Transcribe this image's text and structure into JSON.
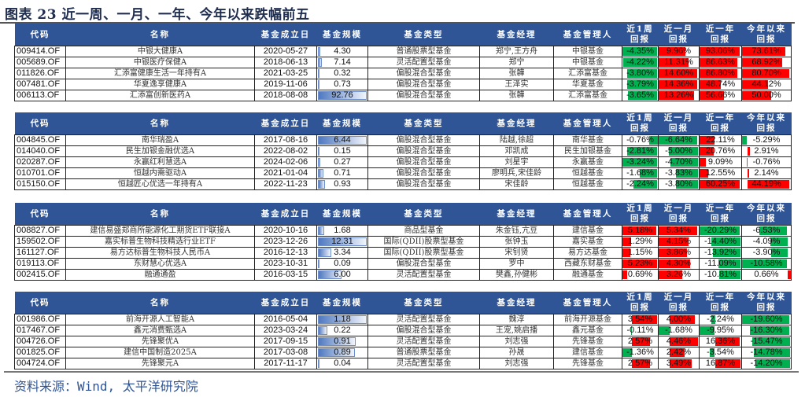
{
  "title": "图表 23 近一周、一月、一年、今年以来跌幅前五",
  "source": "资料来源：Wind, 太平洋研究院",
  "colors": {
    "header_bg": "#2f5597",
    "positive_bar": "#ff0000",
    "negative_bar": "#00b050",
    "scale_bar": "#4f79c0"
  },
  "headers": [
    "代码",
    "名称",
    "基金成立日",
    "基金规模",
    "基金类型",
    "基金经理",
    "基金管理人",
    "近1周\n回报",
    "近一月\n回报",
    "近一年\n回报",
    "今年以来\n回报"
  ],
  "sections": [
    {
      "rows": [
        [
          "009414.OF",
          "中银大健康A",
          "2020-05-27",
          "4.30",
          "普通股票型基金",
          "郑宁,王方舟",
          "中银基金",
          "-4.35%",
          "9.96%",
          "93.06%",
          "73.61%"
        ],
        [
          "005689.OF",
          "中银医疗保健A",
          "2018-06-13",
          "7.14",
          "灵活配置型基金",
          "郑宁",
          "中银基金",
          "-4.22%",
          "11.31%",
          "86.63%",
          "68.92%"
        ],
        [
          "011826.OF",
          "汇添富健康生活一年持有A",
          "2021-03-25",
          "0.32",
          "偏股混合型基金",
          "张韡",
          "汇添富基金",
          "-3.80%",
          "14.60%",
          "86.80%",
          "80.70%"
        ],
        [
          "007481.OF",
          "华夏逸享健康A",
          "2019-11-06",
          "0.73",
          "偏股混合型基金",
          "王泽实",
          "华夏基金",
          "-3.79%",
          "14.36%",
          "48.74%",
          "44.12%"
        ],
        [
          "006113.OF",
          "汇添富创新医药A",
          "2018-08-08",
          "92.76",
          "偏股混合型基金",
          "张韡",
          "汇添富基金",
          "-3.65%",
          "13.26%",
          "56.66%",
          "50.00%"
        ]
      ]
    },
    {
      "rows": [
        [
          "004845.OF",
          "南华瑞盈A",
          "2017-08-16",
          "6.44",
          "偏股混合型基金",
          "陆越,徐超",
          "南华基金",
          "-0.76%",
          "-6.64%",
          "22.11%",
          "-5.29%"
        ],
        [
          "014040.OF",
          "民生加银金融优选A",
          "2022-08-02",
          "0.15",
          "偏股混合型基金",
          "邓凯成",
          "民生加银基金",
          "-2.81%",
          "-5.00%",
          "20.76%",
          "2.91%"
        ],
        [
          "020287.OF",
          "永赢红利慧选A",
          "2024-02-06",
          "0.27",
          "偏股混合型基金",
          "刘星宇",
          "永赢基金",
          "-3.24%",
          "-4.70%",
          "9.09%",
          "-0.76%"
        ],
        [
          "010701.OF",
          "恒越内需驱动A",
          "2021-01-04",
          "0.71",
          "偏股混合型基金",
          "廖明兵,宋佳龄",
          "恒越基金",
          "-1.68%",
          "-3.83%",
          "12.55%",
          "2.14%"
        ],
        [
          "015150.OF",
          "恒越匠心优选一年持有A",
          "2022-11-23",
          "0.93",
          "偏股混合型基金",
          "宋佳龄",
          "恒越基金",
          "-2.24%",
          "-3.80%",
          "60.25%",
          "44.19%"
        ]
      ]
    },
    {
      "rows": [
        [
          "008827.OF",
          "建信易盛郑商所能源化工期货ETF联接A",
          "2020-10-16",
          "1.68",
          "商品型基金",
          "朱金钰,亢豆",
          "建信基金",
          "5.18%",
          "5.34%",
          "-20.29%",
          "-6.53%"
        ],
        [
          "159502.OF",
          "嘉实标普生物科技精选行业ETF",
          "2023-12-26",
          "12.31",
          "国际(QDII)股票型基金",
          "张钟玉",
          "嘉实基金",
          "1.29%",
          "4.15%",
          "-14.40%",
          "-4.09%"
        ],
        [
          "161127.OF",
          "易方达标普生物科技人民币A",
          "2016-12-13",
          "3.34",
          "国际(QDII)股票型基金",
          "宋钊贤",
          "易方达基金",
          "1.15%",
          "3.86%",
          "-13.92%",
          "-3.90%"
        ],
        [
          "019113.OF",
          "东财慧心优选A",
          "2023-10-31",
          "0.09",
          "偏股混合型基金",
          "罗中",
          "西藏东财基金",
          "5.23%",
          "4.30%",
          "-11.09%",
          "-10.58%"
        ],
        [
          "002415.OF",
          "融通通盈",
          "2016-03-15",
          "6.00",
          "灵活配置型基金",
          "樊鑫,孙健彬",
          "融通基金",
          "0.69%",
          "3.26%",
          "-10.81%",
          "0.66%"
        ]
      ]
    },
    {
      "rows": [
        [
          "001986.OF",
          "前海开源人工智能A",
          "2016-05-04",
          "1.18",
          "灵活配置型基金",
          "魏淳",
          "前海开源基金",
          "3.54%",
          "4.00%",
          "-2.24%",
          "-19.60%"
        ],
        [
          "017467.OF",
          "鑫元消费甄选A",
          "2023-03-24",
          "0.22",
          "偏股混合型基金",
          "王宠,姚启播",
          "鑫元基金",
          "-0.11%",
          "-1.68%",
          "-9.95%",
          "-16.30%"
        ],
        [
          "004726.OF",
          "先锋聚优A",
          "2017-09-15",
          "0.91",
          "灵活配置型基金",
          "刘志强",
          "先锋基金",
          "2.57%",
          "4.46%",
          "16.36%",
          "-15.47%"
        ],
        [
          "001825.OF",
          "建信中国制造2025A",
          "2017-03-08",
          "0.89",
          "普通股票型基金",
          "孙晟",
          "建信基金",
          "-1.36%",
          "2.42%",
          "-3.54%",
          "-14.78%"
        ],
        [
          "004724.OF",
          "先锋聚元A",
          "2017-11-17",
          "0.04",
          "灵活配置型基金",
          "刘志强",
          "先锋基金",
          "2.57%",
          "3.49%",
          "16.87%",
          "-14.20%"
        ]
      ]
    }
  ]
}
